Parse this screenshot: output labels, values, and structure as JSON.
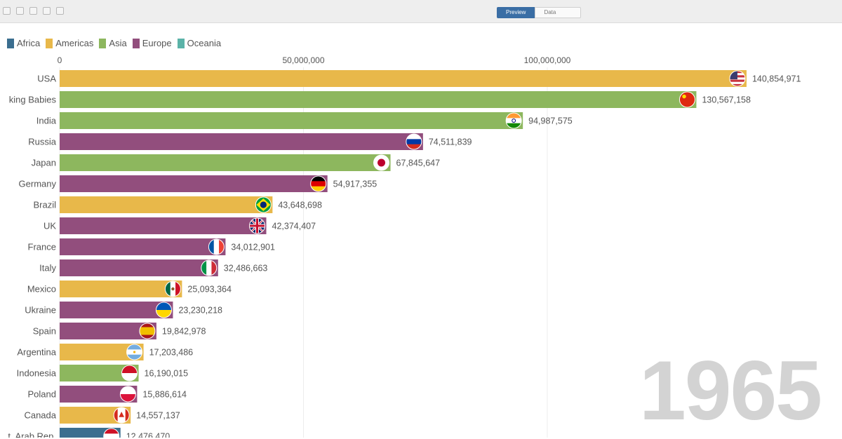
{
  "toolbar": {
    "preview_label": "Preview",
    "data_label": "Data"
  },
  "legend": [
    {
      "name": "Africa",
      "color": "#3b6e8f"
    },
    {
      "name": "Americas",
      "color": "#e8b84a"
    },
    {
      "name": "Asia",
      "color": "#8db75e"
    },
    {
      "name": "Europe",
      "color": "#924e7d"
    },
    {
      "name": "Oceania",
      "color": "#5bb3a8"
    }
  ],
  "year": "1965",
  "chart_data": {
    "type": "bar",
    "orientation": "horizontal",
    "title": "",
    "xlim": [
      0,
      150000000
    ],
    "ticks": [
      {
        "value": 0,
        "label": "0"
      },
      {
        "value": 50000000,
        "label": "50,000,000"
      },
      {
        "value": 100000000,
        "label": "100,000,000"
      }
    ],
    "bars": [
      {
        "label": "USA",
        "value": 140854971,
        "value_label": "140,854,971",
        "region": "Americas",
        "flag": "us"
      },
      {
        "label": "king Babies",
        "value": 130567158,
        "value_label": "130,567,158",
        "region": "Asia",
        "flag": "cn"
      },
      {
        "label": "India",
        "value": 94987575,
        "value_label": "94,987,575",
        "region": "Asia",
        "flag": "in"
      },
      {
        "label": "Russia",
        "value": 74511839,
        "value_label": "74,511,839",
        "region": "Europe",
        "flag": "ru"
      },
      {
        "label": "Japan",
        "value": 67845647,
        "value_label": "67,845,647",
        "region": "Asia",
        "flag": "jp"
      },
      {
        "label": "Germany",
        "value": 54917355,
        "value_label": "54,917,355",
        "region": "Europe",
        "flag": "de"
      },
      {
        "label": "Brazil",
        "value": 43648698,
        "value_label": "43,648,698",
        "region": "Americas",
        "flag": "br"
      },
      {
        "label": "UK",
        "value": 42374407,
        "value_label": "42,374,407",
        "region": "Europe",
        "flag": "gb"
      },
      {
        "label": "France",
        "value": 34012901,
        "value_label": "34,012,901",
        "region": "Europe",
        "flag": "fr"
      },
      {
        "label": "Italy",
        "value": 32486663,
        "value_label": "32,486,663",
        "region": "Europe",
        "flag": "it"
      },
      {
        "label": "Mexico",
        "value": 25093364,
        "value_label": "25,093,364",
        "region": "Americas",
        "flag": "mx"
      },
      {
        "label": "Ukraine",
        "value": 23230218,
        "value_label": "23,230,218",
        "region": "Europe",
        "flag": "ua"
      },
      {
        "label": "Spain",
        "value": 19842978,
        "value_label": "19,842,978",
        "region": "Europe",
        "flag": "es"
      },
      {
        "label": "Argentina",
        "value": 17203486,
        "value_label": "17,203,486",
        "region": "Americas",
        "flag": "ar"
      },
      {
        "label": "Indonesia",
        "value": 16190015,
        "value_label": "16,190,015",
        "region": "Asia",
        "flag": "id"
      },
      {
        "label": "Poland",
        "value": 15886614,
        "value_label": "15,886,614",
        "region": "Europe",
        "flag": "pl"
      },
      {
        "label": "Canada",
        "value": 14557137,
        "value_label": "14,557,137",
        "region": "Americas",
        "flag": "ca"
      },
      {
        "label": "t, Arab Rep.",
        "value": 12476470,
        "value_label": "12,476,470",
        "region": "Africa",
        "flag": "eg"
      }
    ]
  }
}
